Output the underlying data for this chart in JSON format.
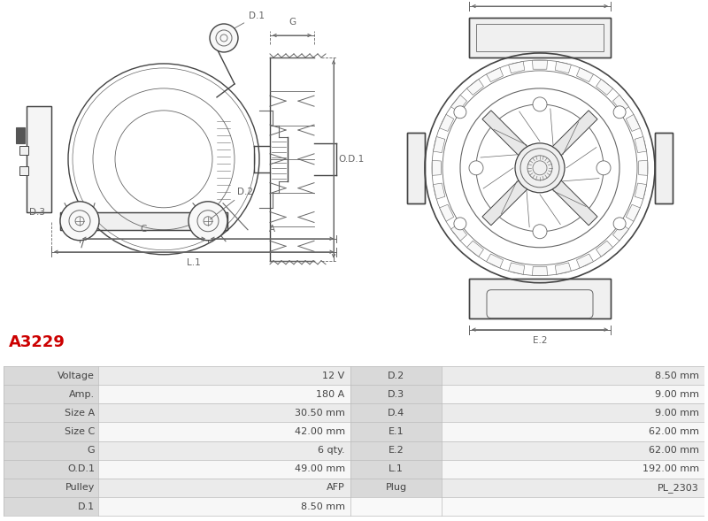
{
  "title": "A3229",
  "title_color": "#cc0000",
  "bg_color": "#ffffff",
  "table_data": [
    [
      "Voltage",
      "12 V",
      "D.2",
      "8.50 mm"
    ],
    [
      "Amp.",
      "180 A",
      "D.3",
      "9.00 mm"
    ],
    [
      "Size A",
      "30.50 mm",
      "D.4",
      "9.00 mm"
    ],
    [
      "Size C",
      "42.00 mm",
      "E.1",
      "62.00 mm"
    ],
    [
      "G",
      "6 qty.",
      "E.2",
      "62.00 mm"
    ],
    [
      "O.D.1",
      "49.00 mm",
      "L.1",
      "192.00 mm"
    ],
    [
      "Pulley",
      "AFP",
      "Plug",
      "PL_2303"
    ],
    [
      "D.1",
      "8.50 mm",
      "",
      ""
    ]
  ],
  "header_bg": "#d9d9d9",
  "row_bg_odd": "#ebebeb",
  "row_bg_even": "#f7f7f7",
  "border_color": "#bbbbbb",
  "text_color": "#444444",
  "font_size": 8.0,
  "lc": "#666666",
  "lc2": "#444444",
  "dim_color": "#666666"
}
